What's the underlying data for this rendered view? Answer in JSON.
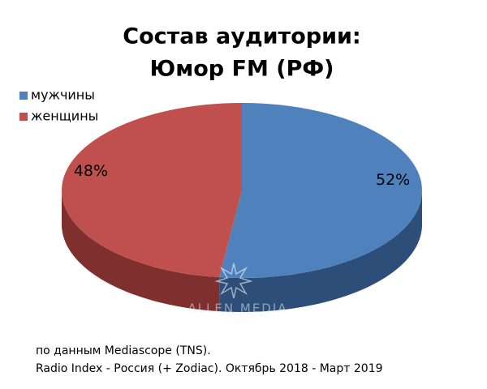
{
  "chart_data": {
    "type": "pie3d",
    "title": [
      "Состав аудитории:",
      "Юмор FM (РФ)"
    ],
    "categories": [
      "мужчины",
      "женщины"
    ],
    "values": [
      52,
      48
    ],
    "value_labels": [
      "52%",
      "48%"
    ],
    "colors": [
      "#4f81bd",
      "#c0504d"
    ],
    "side_colors": [
      "#2d4e78",
      "#7f2f2d"
    ],
    "legend": "top-left",
    "watermark": "ALLEN MEDIA",
    "notes": [
      "по данным Mediascope (TNS).",
      "Radio Index - Россия (+ Zodiac). Октябрь 2018 - Март 2019"
    ]
  }
}
